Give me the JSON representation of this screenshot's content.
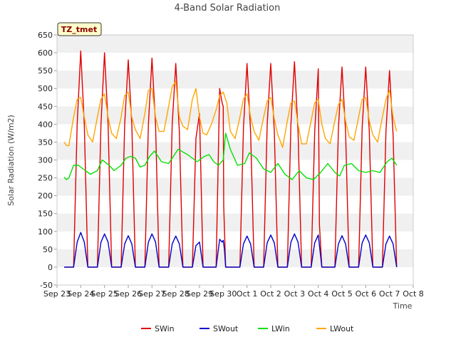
{
  "chart_data": {
    "type": "line",
    "title": "4-Band Solar Radiation",
    "xlabel": "Time",
    "ylabel": "Solar Radiation (W/m2)",
    "tag": "TZ_tmet",
    "ylim": [
      -50,
      650
    ],
    "yticks": [
      -50,
      0,
      50,
      100,
      150,
      200,
      250,
      300,
      350,
      400,
      450,
      500,
      550,
      600,
      650
    ],
    "xlim": [
      0,
      15
    ],
    "xticks": [
      {
        "value": 0,
        "label": "Sep 23"
      },
      {
        "value": 1,
        "label": "Sep 24"
      },
      {
        "value": 2,
        "label": "Sep 25"
      },
      {
        "value": 3,
        "label": "Sep 26"
      },
      {
        "value": 4,
        "label": "Sep 27"
      },
      {
        "value": 5,
        "label": "Sep 28"
      },
      {
        "value": 6,
        "label": "Sep 29"
      },
      {
        "value": 7,
        "label": "Sep 30"
      },
      {
        "value": 8,
        "label": "Oct 1"
      },
      {
        "value": 9,
        "label": "Oct 2"
      },
      {
        "value": 10,
        "label": "Oct 3"
      },
      {
        "value": 11,
        "label": "Oct 4"
      },
      {
        "value": 12,
        "label": "Oct 5"
      },
      {
        "value": 13,
        "label": "Oct 6"
      },
      {
        "value": 14,
        "label": "Oct 7"
      },
      {
        "value": 15,
        "label": "Oct 8"
      }
    ],
    "grid": "horizontal bands",
    "legend": "bottom",
    "series": [
      {
        "name": "SWin",
        "color": "#e00000",
        "x": [
          0.3,
          0.5,
          0.7,
          0.85,
          1.0,
          1.15,
          1.3,
          1.5,
          1.7,
          1.85,
          2.0,
          2.15,
          2.3,
          2.5,
          2.7,
          2.85,
          3.0,
          3.15,
          3.3,
          3.5,
          3.7,
          3.85,
          4.0,
          4.15,
          4.3,
          4.5,
          4.7,
          4.85,
          5.0,
          5.15,
          5.3,
          5.5,
          5.7,
          5.85,
          6.0,
          6.15,
          6.3,
          6.5,
          6.7,
          6.85,
          6.95,
          7.0,
          7.02,
          7.1,
          7.3,
          7.5,
          7.7,
          7.85,
          8.0,
          8.15,
          8.3,
          8.5,
          8.7,
          8.85,
          9.0,
          9.15,
          9.3,
          9.5,
          9.7,
          9.85,
          10.0,
          10.15,
          10.3,
          10.5,
          10.7,
          10.85,
          11.0,
          11.05,
          11.15,
          11.3,
          11.5,
          11.7,
          11.85,
          12.0,
          12.15,
          12.3,
          12.5,
          12.7,
          12.85,
          13.0,
          13.15,
          13.3,
          13.5,
          13.7,
          13.85,
          14.0,
          14.15,
          14.3
        ],
        "y": [
          0,
          0,
          0,
          400,
          605,
          400,
          0,
          0,
          0,
          400,
          600,
          400,
          0,
          0,
          0,
          400,
          580,
          400,
          0,
          0,
          0,
          400,
          585,
          400,
          0,
          0,
          0,
          400,
          570,
          380,
          0,
          0,
          0,
          360,
          430,
          0,
          0,
          0,
          0,
          500,
          460,
          450,
          170,
          0,
          0,
          0,
          0,
          390,
          570,
          380,
          0,
          0,
          0,
          400,
          570,
          380,
          0,
          0,
          0,
          400,
          575,
          380,
          0,
          0,
          0,
          380,
          555,
          120,
          0,
          0,
          0,
          0,
          390,
          560,
          380,
          0,
          0,
          0,
          390,
          560,
          380,
          0,
          0,
          0,
          380,
          550,
          370,
          0
        ]
      },
      {
        "name": "SWout",
        "color": "#0000cc",
        "x": [
          0.3,
          0.5,
          0.7,
          0.85,
          1.0,
          1.15,
          1.3,
          1.5,
          1.7,
          1.85,
          2.0,
          2.15,
          2.3,
          2.5,
          2.7,
          2.85,
          3.0,
          3.15,
          3.3,
          3.5,
          3.7,
          3.85,
          4.0,
          4.15,
          4.3,
          4.5,
          4.7,
          4.85,
          5.0,
          5.15,
          5.3,
          5.5,
          5.7,
          5.85,
          6.0,
          6.15,
          6.3,
          6.5,
          6.7,
          6.85,
          6.95,
          7.0,
          7.05,
          7.1,
          7.3,
          7.5,
          7.7,
          7.85,
          8.0,
          8.15,
          8.3,
          8.5,
          8.7,
          8.85,
          9.0,
          9.15,
          9.3,
          9.5,
          9.7,
          9.85,
          10.0,
          10.15,
          10.3,
          10.5,
          10.7,
          10.85,
          11.0,
          11.15,
          11.3,
          11.5,
          11.7,
          11.85,
          12.0,
          12.15,
          12.3,
          12.5,
          12.7,
          12.85,
          13.0,
          13.15,
          13.3,
          13.5,
          13.7,
          13.85,
          14.0,
          14.15,
          14.3
        ],
        "y": [
          0,
          0,
          0,
          70,
          97,
          70,
          0,
          0,
          0,
          70,
          93,
          70,
          0,
          0,
          0,
          65,
          88,
          65,
          0,
          0,
          0,
          70,
          93,
          70,
          0,
          0,
          0,
          65,
          87,
          65,
          0,
          0,
          0,
          60,
          70,
          0,
          0,
          0,
          0,
          78,
          70,
          75,
          50,
          0,
          0,
          0,
          0,
          65,
          87,
          65,
          0,
          0,
          0,
          68,
          90,
          68,
          0,
          0,
          0,
          70,
          93,
          70,
          0,
          0,
          0,
          68,
          90,
          0,
          0,
          0,
          0,
          65,
          88,
          65,
          0,
          0,
          0,
          68,
          90,
          68,
          0,
          0,
          0,
          65,
          87,
          65,
          0
        ]
      },
      {
        "name": "LWin",
        "color": "#00e000",
        "x": [
          0.3,
          0.4,
          0.5,
          0.7,
          0.9,
          1.0,
          1.2,
          1.4,
          1.7,
          1.9,
          2.0,
          2.2,
          2.4,
          2.7,
          2.9,
          3.1,
          3.3,
          3.5,
          3.7,
          3.9,
          4.1,
          4.4,
          4.7,
          4.9,
          5.1,
          5.5,
          5.9,
          6.2,
          6.4,
          6.6,
          6.8,
          7.0,
          7.1,
          7.3,
          7.6,
          7.9,
          8.1,
          8.4,
          8.7,
          9.0,
          9.3,
          9.6,
          9.9,
          10.2,
          10.5,
          10.8,
          11.1,
          11.4,
          11.7,
          11.9,
          12.1,
          12.4,
          12.7,
          13.0,
          13.3,
          13.6,
          13.9,
          14.1,
          14.3
        ],
        "y": [
          252,
          245,
          250,
          285,
          285,
          280,
          270,
          260,
          270,
          300,
          295,
          285,
          270,
          285,
          305,
          310,
          305,
          280,
          285,
          310,
          325,
          295,
          290,
          310,
          330,
          315,
          295,
          310,
          315,
          295,
          285,
          300,
          375,
          330,
          285,
          290,
          320,
          305,
          275,
          265,
          290,
          260,
          245,
          270,
          250,
          245,
          265,
          290,
          265,
          255,
          285,
          290,
          270,
          265,
          270,
          265,
          295,
          305,
          285
        ]
      },
      {
        "name": "LWout",
        "color": "#ffa500",
        "x": [
          0.3,
          0.4,
          0.5,
          0.7,
          0.85,
          1.0,
          1.15,
          1.3,
          1.5,
          1.7,
          1.85,
          2.0,
          2.15,
          2.3,
          2.5,
          2.7,
          2.85,
          3.0,
          3.15,
          3.3,
          3.5,
          3.7,
          3.85,
          4.0,
          4.15,
          4.3,
          4.5,
          4.7,
          4.85,
          5.0,
          5.15,
          5.3,
          5.5,
          5.7,
          5.85,
          6.0,
          6.15,
          6.3,
          6.5,
          6.7,
          6.85,
          7.0,
          7.15,
          7.3,
          7.5,
          7.7,
          7.85,
          8.0,
          8.15,
          8.3,
          8.5,
          8.7,
          8.85,
          9.0,
          9.15,
          9.3,
          9.5,
          9.7,
          9.85,
          10.0,
          10.15,
          10.3,
          10.5,
          10.7,
          10.85,
          11.0,
          11.15,
          11.3,
          11.5,
          11.7,
          11.85,
          12.0,
          12.15,
          12.3,
          12.5,
          12.7,
          12.85,
          13.0,
          13.15,
          13.3,
          13.5,
          13.7,
          13.85,
          14.0,
          14.15,
          14.3
        ],
        "y": [
          350,
          340,
          340,
          420,
          470,
          475,
          420,
          370,
          350,
          420,
          470,
          485,
          420,
          375,
          360,
          420,
          480,
          490,
          420,
          385,
          360,
          430,
          495,
          500,
          420,
          380,
          380,
          450,
          505,
          520,
          420,
          395,
          385,
          470,
          500,
          420,
          375,
          370,
          400,
          440,
          480,
          490,
          460,
          380,
          360,
          420,
          470,
          485,
          420,
          380,
          355,
          420,
          465,
          475,
          415,
          370,
          335,
          410,
          460,
          465,
          400,
          345,
          345,
          410,
          460,
          470,
          400,
          360,
          345,
          410,
          455,
          470,
          410,
          365,
          355,
          420,
          470,
          475,
          410,
          370,
          350,
          420,
          470,
          495,
          420,
          380
        ]
      }
    ]
  }
}
